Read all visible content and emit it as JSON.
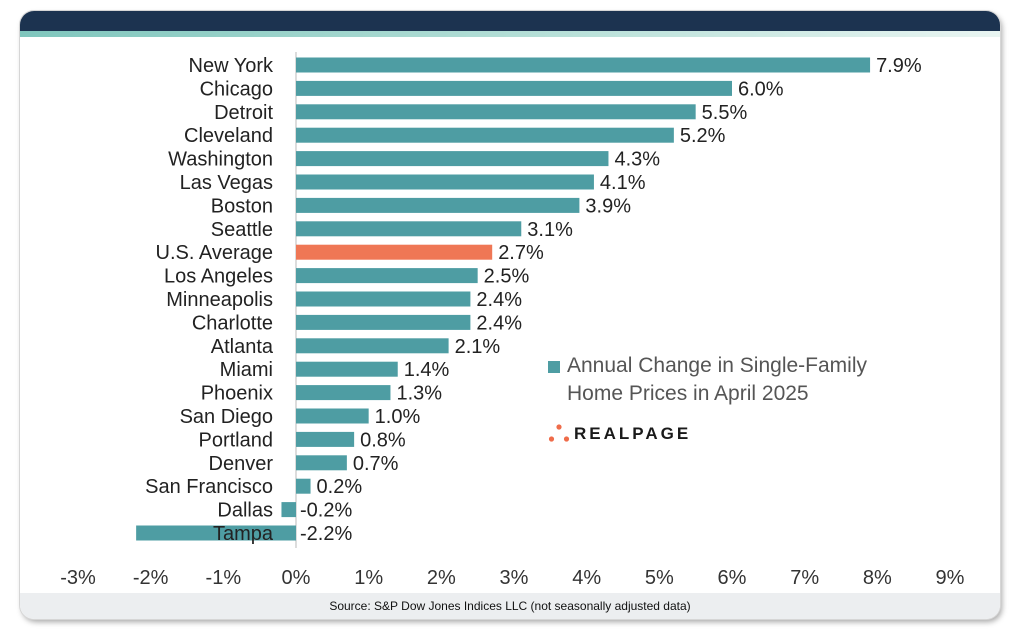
{
  "chart_data": {
    "type": "bar",
    "orientation": "horizontal",
    "categories": [
      "New York",
      "Chicago",
      "Detroit",
      "Cleveland",
      "Washington",
      "Las Vegas",
      "Boston",
      "Seattle",
      "U.S. Average",
      "Los Angeles",
      "Minneapolis",
      "Charlotte",
      "Atlanta",
      "Miami",
      "Phoenix",
      "San Diego",
      "Portland",
      "Denver",
      "San Francisco",
      "Dallas",
      "Tampa"
    ],
    "values": [
      7.9,
      6.0,
      5.5,
      5.2,
      4.3,
      4.1,
      3.9,
      3.1,
      2.7,
      2.5,
      2.4,
      2.4,
      2.1,
      1.4,
      1.3,
      1.0,
      0.8,
      0.7,
      0.2,
      -0.2,
      -2.2
    ],
    "value_labels": [
      "7.9%",
      "6.0%",
      "5.5%",
      "5.2%",
      "4.3%",
      "4.1%",
      "3.9%",
      "3.1%",
      "2.7%",
      "2.5%",
      "2.4%",
      "2.4%",
      "2.1%",
      "1.4%",
      "1.3%",
      "1.0%",
      "0.8%",
      "0.7%",
      "0.2%",
      "-0.2%",
      "-2.2%"
    ],
    "highlight_category": "U.S. Average",
    "xlim": [
      -3,
      9
    ],
    "x_ticks": [
      -3,
      -2,
      -1,
      0,
      1,
      2,
      3,
      4,
      5,
      6,
      7,
      8,
      9
    ],
    "x_tick_labels": [
      "-3%",
      "-2%",
      "-1%",
      "0%",
      "1%",
      "2%",
      "3%",
      "4%",
      "5%",
      "6%",
      "7%",
      "8%",
      "9%"
    ],
    "grid": false,
    "legend_placement": "right",
    "legend_label_lines": [
      "Annual Change in Single-Family",
      "Home Prices in April 2025"
    ],
    "colors": {
      "bar": "#4e9da3",
      "highlight": "#ef7755",
      "zero_line": "#c6c6c6",
      "label_text": "#222222",
      "tick_text": "#333333"
    }
  },
  "source_note": "Source: S&P Dow Jones Indices LLC (not seasonally adjusted data)",
  "logo": {
    "wordmark": "REALPAGE",
    "dot_color": "#ef6c4a"
  },
  "frame_colors": {
    "header": "#1c3350",
    "accent_stripe": "#7fc6bd",
    "footer": "#eceef0"
  }
}
